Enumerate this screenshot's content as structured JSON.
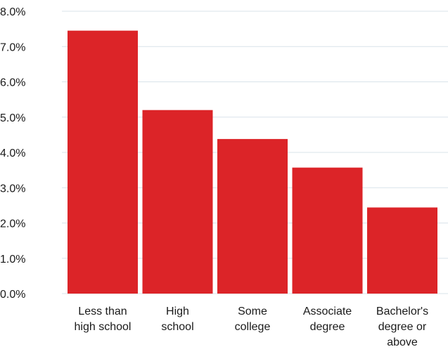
{
  "chart_data": {
    "type": "bar",
    "title": "",
    "xlabel": "",
    "ylabel": "",
    "categories": [
      [
        "Less than",
        "high school"
      ],
      [
        "High",
        "school"
      ],
      [
        "Some",
        "college"
      ],
      [
        "Associate",
        "degree"
      ],
      [
        "Bachelor's",
        "degree or",
        "above"
      ]
    ],
    "values": [
      7.45,
      5.2,
      4.38,
      3.57,
      2.44
    ],
    "ylim": [
      0,
      8
    ],
    "yticks": [
      "0.0%",
      "1.0%",
      "2.0%",
      "3.0%",
      "4.0%",
      "5.0%",
      "6.0%",
      "7.0%",
      "8.0%"
    ],
    "grid": true,
    "bar_color": "#dc2428",
    "grid_color": "#d9e3ea"
  }
}
